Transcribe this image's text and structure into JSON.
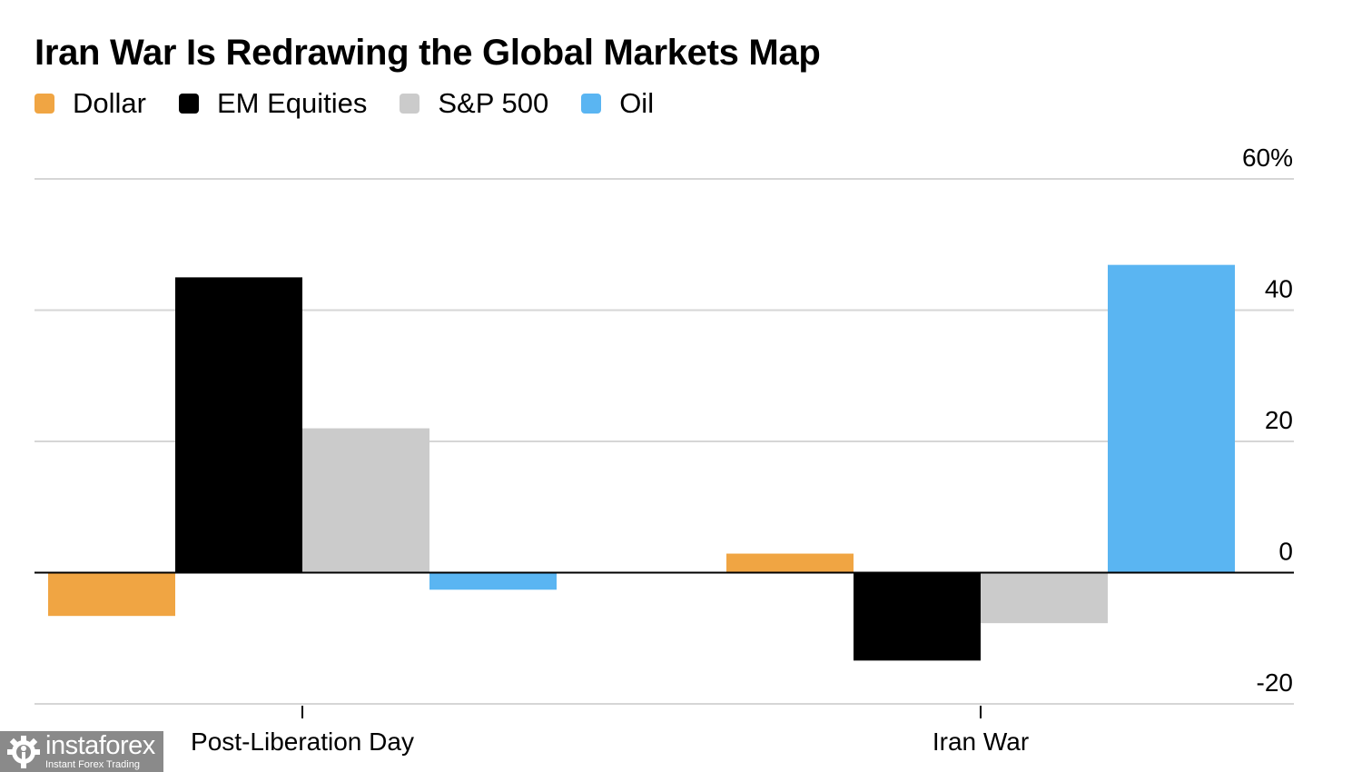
{
  "chart_data": {
    "type": "bar",
    "title": "Iran War Is Redrawing the Global Markets Map",
    "xlabel": "",
    "ylabel": "",
    "categories": [
      "Post-Liberation Day",
      "Iran War"
    ],
    "series": [
      {
        "name": "Dollar",
        "color": "#f0a543",
        "values": [
          -6.6,
          2.9
        ]
      },
      {
        "name": "EM Equities",
        "color": "#000000",
        "values": [
          45.0,
          -13.4
        ]
      },
      {
        "name": "S&P 500",
        "color": "#cbcbcb",
        "values": [
          22.0,
          -7.7
        ]
      },
      {
        "name": "Oil",
        "color": "#5ab5f2",
        "values": [
          -2.6,
          46.9
        ]
      }
    ],
    "ylim": [
      -20,
      60
    ],
    "yticks": [
      60,
      40,
      20,
      0,
      -20
    ],
    "ytick_labels": [
      "60%",
      "40",
      "20",
      "0",
      "-20"
    ],
    "y_axis_side": "right",
    "grid": true,
    "legend_position": "top-left"
  },
  "watermark": {
    "brand": "instaforex",
    "tagline": "Instant Forex Trading"
  }
}
